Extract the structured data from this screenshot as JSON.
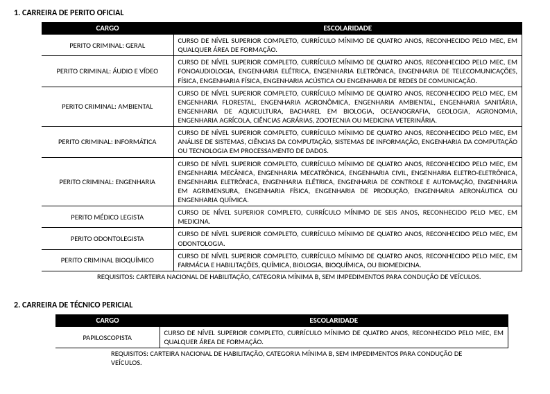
{
  "section1": {
    "title": "1. CARREIRA DE PERITO OFICIAL",
    "colCargo": "CARGO",
    "colEsc": "ESCOLARIDADE",
    "rows": [
      {
        "cargo": "PERITO CRIMINAL: GERAL",
        "esc": "CURSO DE NÍVEL SUPERIOR COMPLETO, CURRÍCULO MÍNIMO DE QUATRO ANOS, RECONHECIDO PELO MEC, EM QUALQUER ÁREA DE FORMAÇÃO."
      },
      {
        "cargo": "PERITO CRIMINAL: ÁUDIO E VÍDEO",
        "esc": "CURSO DE NÍVEL SUPERIOR COMPLETO, CURRÍCULO MÍNIMO DE QUATRO ANOS, RECONHECIDO PELO MEC, EM FONOAUDIOLOGIA, ENGENHARIA ELÉTRICA, ENGENHARIA ELETRÔNICA, ENGENHARIA DE TELECOMUNICAÇÕES, FÍSICA, ENGENHARIA FÍSICA, ENGENHARIA ACÚSTICA OU ENGENHARIA DE REDES DE COMUNICAÇÃO."
      },
      {
        "cargo": "PERITO CRIMINAL: AMBIENTAL",
        "esc": "CURSO DE NÍVEL SUPERIOR COMPLETO, CURRÍCULO MÍNIMO DE QUATRO ANOS, RECONHECIDO PELO MEC, EM ENGENHARIA FLORESTAL, ENGENHARIA AGRONÔMICA, ENGENHARIA AMBIENTAL, ENGENHARIA SANITÁRIA, ENGENHARIA DE AQUICULTURA, BACHAREL EM BIOLOGIA, OCEANOGRAFIA, GEOLOGIA, AGRONOMIA, ENGENHARIA AGRÍCOLA, CIÊNCIAS AGRÁRIAS, ZOOTECNIA OU MEDICINA VETERINÁRIA."
      },
      {
        "cargo": "PERITO CRIMINAL: INFORMÁTICA",
        "esc": "CURSO DE NÍVEL SUPERIOR COMPLETO, CURRÍCULO MÍNIMO DE QUATRO ANOS, RECONHECIDO PELO MEC, EM ANÁLISE DE SISTEMAS, CIÊNCIAS DA COMPUTAÇÃO, SISTEMAS DE INFORMAÇÃO, ENGENHARIA DA COMPUTAÇÃO OU TECNOLOGIA EM PROCESSAMENTO DE DADOS."
      },
      {
        "cargo": "PERITO CRIMINAL: ENGENHARIA",
        "esc": "CURSO DE NÍVEL SUPERIOR COMPLETO, CURRÍCULO MÍNIMO DE QUATRO ANOS, RECONHECIDO PELO MEC, EM ENGENHARIA MECÂNICA, ENGENHARIA MECATRÔNICA, ENGENHARIA CIVIL, ENGENHARIA ELETRO-ELETRÔNICA, ENGENHARIA ELETRÔNICA, ENGENHARIA ELÉTRICA, ENGENHARIA DE CONTROLE E AUTOMAÇÃO, ENGENHARIA EM AGRIMENSURA, ENGENHARIA FÍSICA, ENGENHARIA DE PRODUÇÃO, ENGENHARIA AERONÁUTICA OU ENGENHARIA QUÍMICA."
      },
      {
        "cargo": "PERITO MÉDICO LEGISTA",
        "esc": "CURSO DE NÍVEL SUPERIOR COMPLETO, CURRÍCULO MÍNIMO DE SEIS ANOS, RECONHECIDO PELO MEC, EM MEDICINA."
      },
      {
        "cargo": "PERITO ODONTOLEGISTA",
        "esc": "CURSO DE NÍVEL SUPERIOR COMPLETO, CURRÍCULO MÍNIMO DE QUATRO ANOS, RECONHECIDO PELO MEC, EM ODONTOLOGIA."
      },
      {
        "cargo": "PERITO CRIMINAL BIOQUÍMICO",
        "esc": "CURSO DE NÍVEL SUPERIOR COMPLETO, CURRÍCULO MÍNIMO DE QUATRO ANOS, RECONHECIDO PELO MEC, EM FARMÁCIA E HABILITAÇÕES, QUÍMICA, BIOLOGIA, BIOQUÍMICA, OU BIOMEDICINA."
      }
    ],
    "requisitos": "REQUISITOS: CARTEIRA NACIONAL DE HABILITAÇÃO, CATEGORIA MÍNIMA B, SEM IMPEDIMENTOS PARA CONDUÇÃO DE VEÍCULOS."
  },
  "section2": {
    "title": "2. CARREIRA DE TÉCNICO PERICIAL",
    "colCargo": "CARGO",
    "colEsc": "ESCOLARIDADE",
    "rows": [
      {
        "cargo": "PAPILOSCOPISTA",
        "esc": "CURSO DE NÍVEL SUPERIOR COMPLETO, CURRÍCULO MÍNIMO DE QUATRO ANOS, RECONHECIDO PELO MEC, EM QUALQUER ÁREA DE FORMAÇÃO."
      }
    ],
    "requisitos": "REQUISITOS: CARTEIRA NACIONAL DE HABILITAÇÃO, CATEGORIA MÍNIMA B, SEM IMPEDIMENTOS PARA CONDUÇÃO DE VEÍCULOS."
  }
}
